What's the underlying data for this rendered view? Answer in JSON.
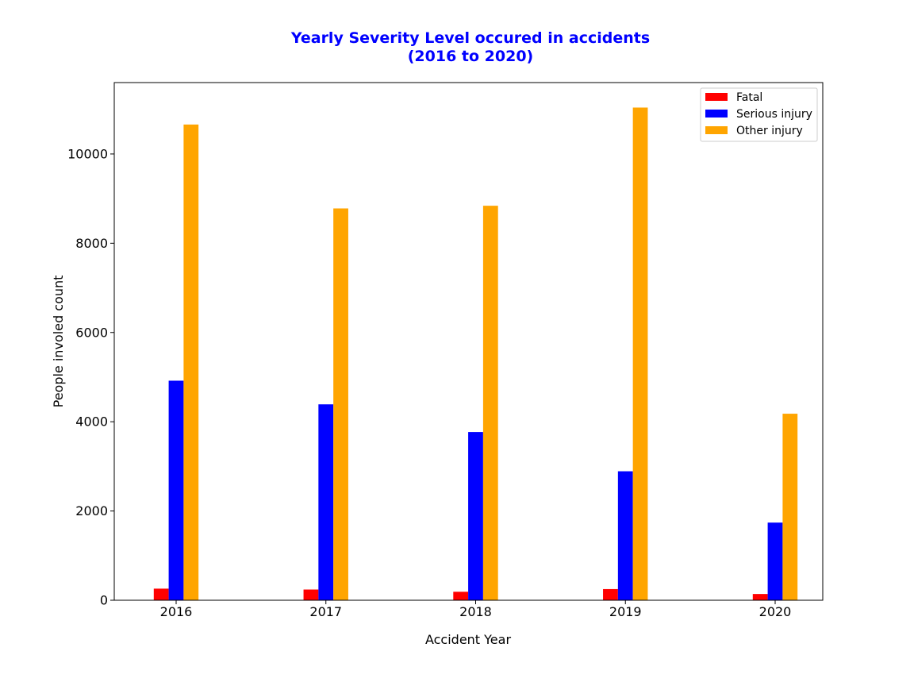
{
  "chart_data": {
    "type": "bar",
    "title_line1": "Yearly Severity Level occured in accidents",
    "title_line2": "(2016 to 2020)",
    "xlabel": "Accident Year",
    "ylabel": "People involed count",
    "categories": [
      "2016",
      "2017",
      "2018",
      "2019",
      "2020"
    ],
    "ylim": [
      0,
      11600
    ],
    "yticks": [
      0,
      2000,
      4000,
      6000,
      8000,
      10000
    ],
    "legend_position": "top-right",
    "grid": false,
    "series": [
      {
        "name": "Fatal",
        "color": "#ff0000",
        "values": [
          260,
          240,
          190,
          250,
          140
        ]
      },
      {
        "name": "Serious injury",
        "color": "#0000ff",
        "values": [
          4920,
          4390,
          3770,
          2890,
          1740
        ]
      },
      {
        "name": "Other injury",
        "color": "#ffa500",
        "values": [
          10660,
          8780,
          8840,
          11040,
          4180
        ]
      }
    ]
  }
}
